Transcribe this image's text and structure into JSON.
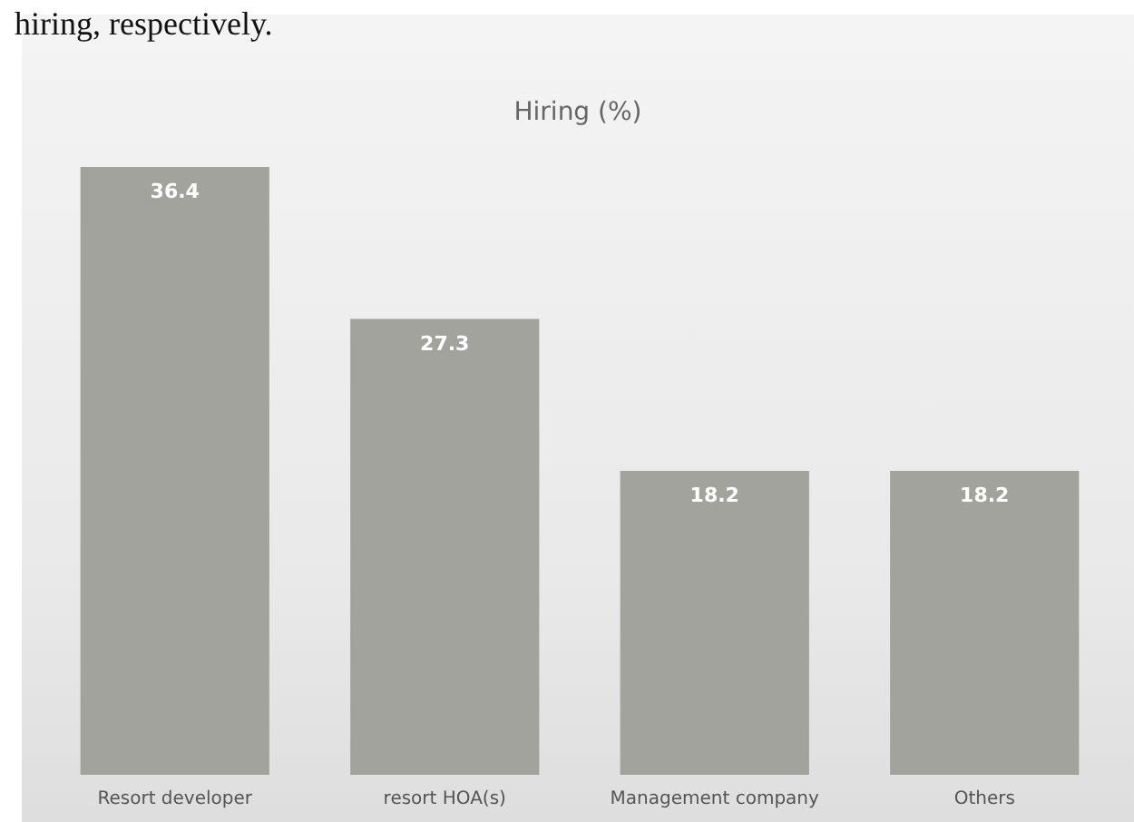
{
  "chart_data": {
    "type": "bar",
    "title": "Hiring (%)",
    "categories": [
      "Resort developer",
      "resort HOA(s)",
      "Management company",
      "Others"
    ],
    "values": [
      36.4,
      27.3,
      18.2,
      18.2
    ],
    "color": "#a3a39e",
    "data_labels": true,
    "annotations": [
      "hiring, respectively."
    ]
  }
}
